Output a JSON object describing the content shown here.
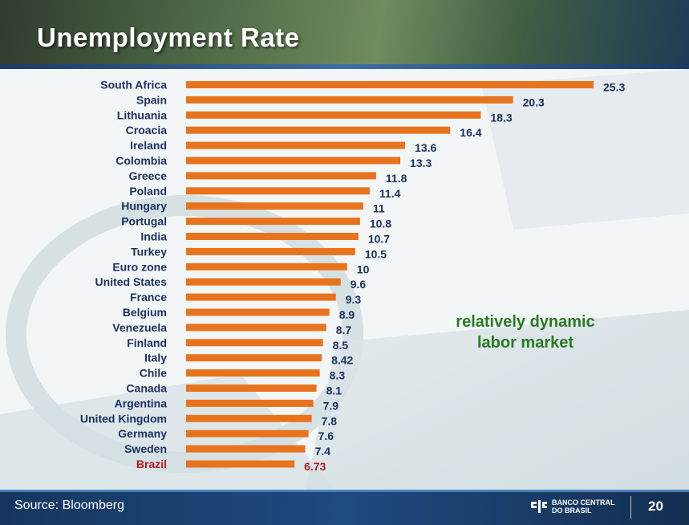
{
  "slide": {
    "title": "Unemployment Rate",
    "source": "Source: Bloomberg",
    "brand_line1": "BANCO CENTRAL",
    "brand_line2": "DO BRASIL",
    "page_number": "20"
  },
  "annotation": {
    "line1": "relatively dynamic",
    "line2": "labor market"
  },
  "colors": {
    "bar": "#e8731e",
    "label": "#1b2f5e",
    "highlight": "#b01a1a",
    "annotation": "#2a7a22"
  },
  "chart_data": {
    "type": "bar",
    "orientation": "horizontal",
    "title": "Unemployment Rate",
    "xlabel": "",
    "ylabel": "",
    "grid": false,
    "highlight_category": "Brazil",
    "categories": [
      "South Africa",
      "Spain",
      "Lithuania",
      "Croacia",
      "Ireland",
      "Colombia",
      "Greece",
      "Poland",
      "Hungary",
      "Portugal",
      "India",
      "Turkey",
      "Euro zone",
      "United States",
      "France",
      "Belgium",
      "Venezuela",
      "Finland",
      "Italy",
      "Chile",
      "Canada",
      "Argentina",
      "United Kingdom",
      "Germany",
      "Sweden",
      "Brazil"
    ],
    "values": [
      25.3,
      20.3,
      18.3,
      16.4,
      13.6,
      13.3,
      11.8,
      11.4,
      11,
      10.8,
      10.7,
      10.5,
      10,
      9.6,
      9.3,
      8.9,
      8.7,
      8.5,
      8.42,
      8.3,
      8.1,
      7.9,
      7.8,
      7.6,
      7.4,
      6.73
    ],
    "value_labels": [
      "25.3",
      "20.3",
      "18.3",
      "16.4",
      "13.6",
      "13.3",
      "11.8",
      "11.4",
      "11",
      "10.8",
      "10.7",
      "10.5",
      "10",
      "9.6",
      "9.3",
      "8.9",
      "8.7",
      "8.5",
      "8.42",
      "8.3",
      "8.1",
      "7.9",
      "7.8",
      "7.6",
      "7.4",
      "6.73"
    ]
  }
}
